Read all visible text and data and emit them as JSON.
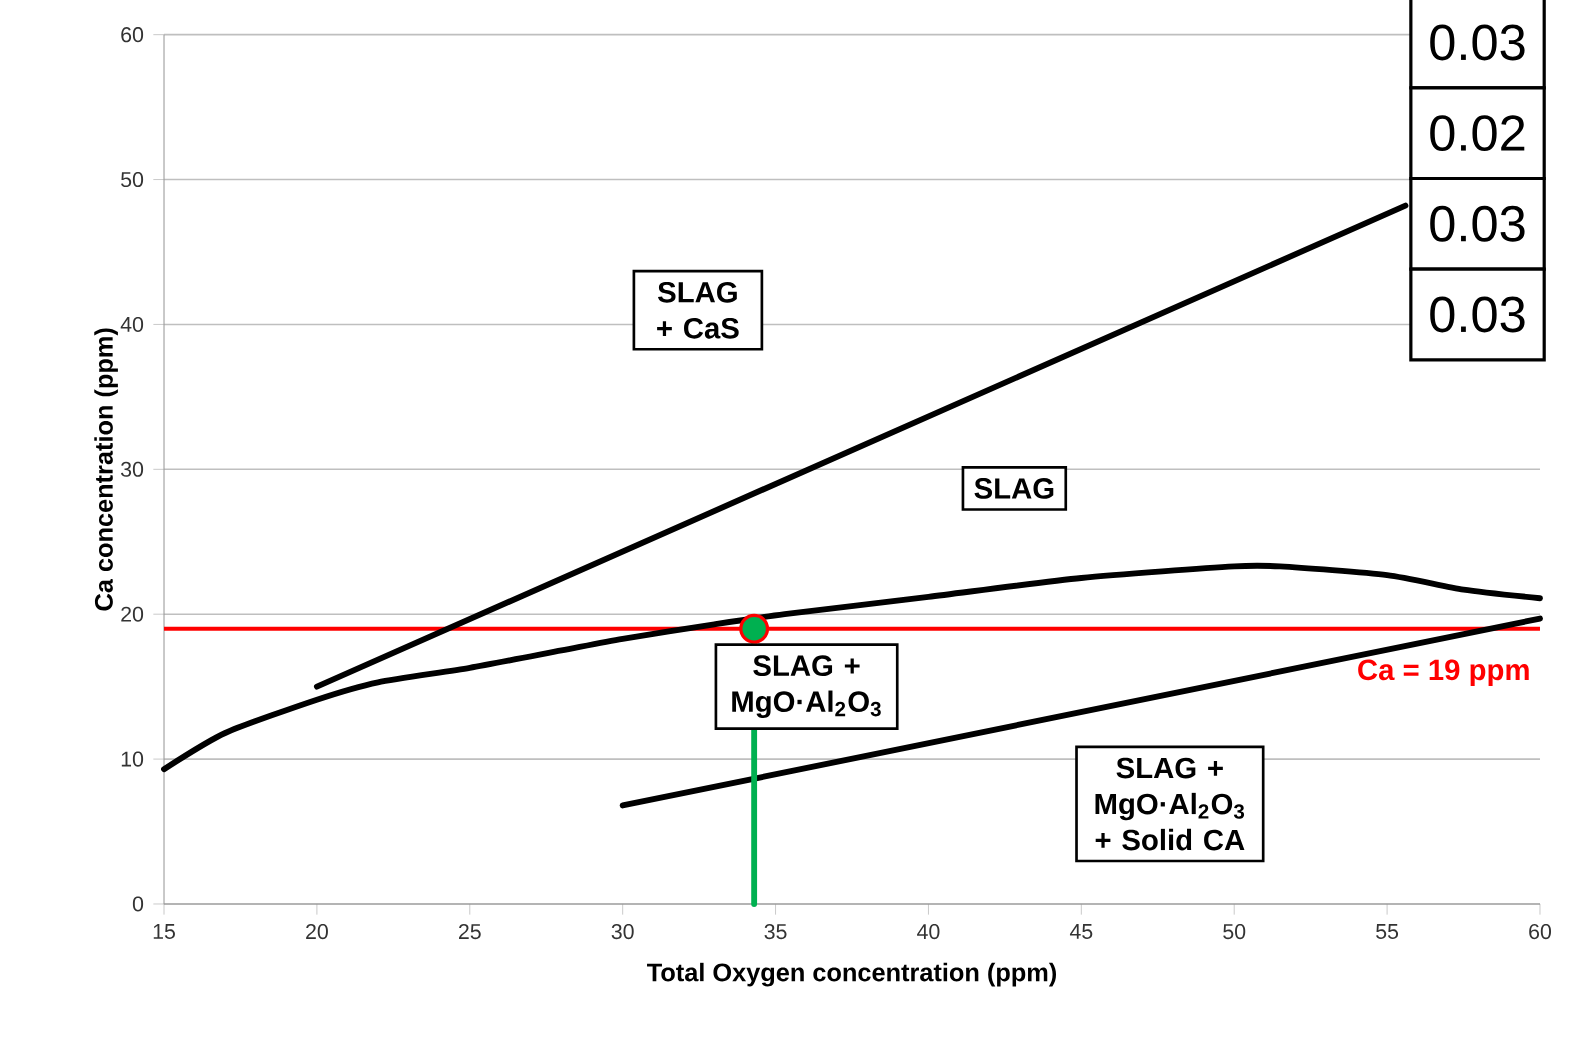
{
  "chart_data": {
    "type": "line",
    "xlabel": "Total Oxygen concentration (ppm)",
    "ylabel": "Ca concentration (ppm)",
    "xlim": [
      15,
      60
    ],
    "ylim": [
      0,
      60
    ],
    "xticks": [
      15,
      20,
      25,
      30,
      35,
      40,
      45,
      50,
      55,
      60
    ],
    "yticks": [
      0,
      10,
      20,
      30,
      40,
      50,
      60
    ],
    "grid": "y",
    "series": [
      {
        "color": "#000000",
        "x": [
          20,
          55.6
        ],
        "values": [
          15,
          48.2
        ]
      },
      {
        "color": "#000000",
        "x": [
          15,
          17,
          20,
          22,
          25,
          28,
          30,
          33,
          35.3,
          40,
          45,
          50,
          51.5,
          55,
          57.5,
          60
        ],
        "values": [
          9.3,
          11.8,
          14.1,
          15.3,
          16.3,
          17.5,
          18.3,
          19.3,
          20.0,
          21.2,
          22.5,
          23.3,
          23.3,
          22.7,
          21.7,
          21.1
        ]
      },
      {
        "color": "#000000",
        "x": [
          30,
          60
        ],
        "values": [
          6.8,
          19.7
        ]
      },
      {
        "color": "#00b050",
        "x": [
          34.3,
          34.3
        ],
        "values": [
          0,
          19
        ]
      },
      {
        "type": "scatter",
        "color": "#00b050",
        "marker": "circle",
        "x": [
          34.3
        ],
        "values": [
          19
        ]
      }
    ],
    "ref_lines": [
      {
        "axis": "y",
        "value": 19,
        "label": "Ca = 19 ppm",
        "color": "#ff0000"
      }
    ],
    "annotations": [
      "SLAG + CaS",
      "SLAG",
      "SLAG + MgO·Al$_{2}$O$_{3}$",
      "SLAG + MgO·Al$_{2}$O$_{3}$ + Solid CA",
      "0.03",
      "0.02",
      "0.03",
      "0.03"
    ]
  }
}
